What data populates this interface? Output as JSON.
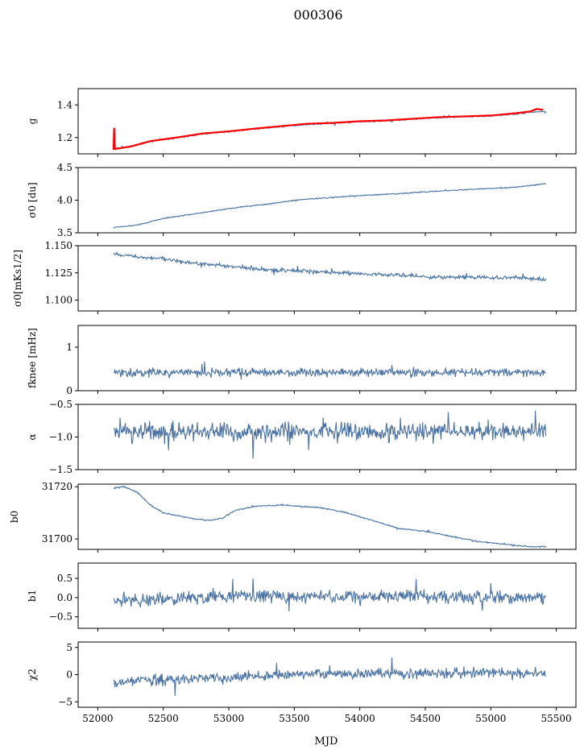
{
  "title": "000306",
  "xlabel": "MJD",
  "x_range": [
    51850,
    55650
  ],
  "x_ticks": [
    52000,
    52500,
    53000,
    53500,
    54000,
    54500,
    55000,
    55500
  ],
  "colors": {
    "series": "#4a72a4",
    "overlay": "#ff0000",
    "axis": "#000000"
  },
  "chart_data": [
    {
      "type": "line",
      "name": "g",
      "ylabel": "g",
      "ylim": [
        1.1,
        1.5
      ],
      "yticks": [
        1.2,
        1.4
      ],
      "ytick_labels": [
        "1.2",
        "1.4"
      ],
      "x_start": 52120,
      "x_end": 55420,
      "overlay": {
        "color": "#ff0000",
        "points": [
          [
            52120,
            1.125
          ],
          [
            52125,
            1.26
          ],
          [
            52130,
            1.13
          ],
          [
            52250,
            1.145
          ],
          [
            52400,
            1.178
          ],
          [
            52600,
            1.2
          ],
          [
            52800,
            1.225
          ],
          [
            53000,
            1.238
          ],
          [
            53200,
            1.255
          ],
          [
            53400,
            1.27
          ],
          [
            53600,
            1.285
          ],
          [
            53800,
            1.29
          ],
          [
            54000,
            1.3
          ],
          [
            54200,
            1.305
          ],
          [
            54400,
            1.315
          ],
          [
            54600,
            1.325
          ],
          [
            54800,
            1.33
          ],
          [
            55000,
            1.335
          ],
          [
            55200,
            1.35
          ],
          [
            55300,
            1.36
          ],
          [
            55350,
            1.375
          ],
          [
            55400,
            1.37
          ]
        ]
      },
      "series": [
        {
          "points": [
            [
              52120,
              1.13
            ],
            [
              52250,
              1.145
            ],
            [
              52400,
              1.175
            ],
            [
              52600,
              1.198
            ],
            [
              52800,
              1.222
            ],
            [
              53000,
              1.235
            ],
            [
              53200,
              1.252
            ],
            [
              53400,
              1.267
            ],
            [
              53600,
              1.28
            ],
            [
              53800,
              1.288
            ],
            [
              54000,
              1.297
            ],
            [
              54200,
              1.302
            ],
            [
              54400,
              1.312
            ],
            [
              54600,
              1.322
            ],
            [
              54800,
              1.327
            ],
            [
              55000,
              1.332
            ],
            [
              55200,
              1.345
            ],
            [
              55300,
              1.355
            ],
            [
              55400,
              1.36
            ]
          ],
          "noise": 0.003,
          "seed": 1
        }
      ]
    },
    {
      "type": "line",
      "name": "sigma0_du",
      "ylabel": "σ0 [du]",
      "ylim": [
        3.5,
        4.5
      ],
      "yticks": [
        3.5,
        4.0,
        4.5
      ],
      "ytick_labels": [
        "3.5",
        "4.0",
        "4.5"
      ],
      "x_start": 52120,
      "x_end": 55420,
      "series": [
        {
          "points": [
            [
              52120,
              3.58
            ],
            [
              52300,
              3.62
            ],
            [
              52500,
              3.72
            ],
            [
              52700,
              3.78
            ],
            [
              52900,
              3.84
            ],
            [
              53100,
              3.9
            ],
            [
              53300,
              3.94
            ],
            [
              53500,
              4.0
            ],
            [
              53700,
              4.03
            ],
            [
              54000,
              4.07
            ],
            [
              54300,
              4.1
            ],
            [
              54600,
              4.14
            ],
            [
              54900,
              4.17
            ],
            [
              55200,
              4.2
            ],
            [
              55400,
              4.25
            ]
          ],
          "noise": 0.006,
          "seed": 2
        }
      ]
    },
    {
      "type": "line",
      "name": "sigma0_mks",
      "ylabel": "σ0[mKs1/2]",
      "ylim": [
        1.09,
        1.15
      ],
      "yticks": [
        1.1,
        1.125,
        1.15
      ],
      "ytick_labels": [
        "1.100",
        "1.125",
        "1.150"
      ],
      "x_start": 52120,
      "x_end": 55420,
      "series": [
        {
          "points": [
            [
              52120,
              1.142
            ],
            [
              52300,
              1.14
            ],
            [
              52500,
              1.138
            ],
            [
              52700,
              1.134
            ],
            [
              52900,
              1.132
            ],
            [
              53100,
              1.13
            ],
            [
              53300,
              1.128
            ],
            [
              53500,
              1.127
            ],
            [
              53700,
              1.126
            ],
            [
              54000,
              1.124
            ],
            [
              54300,
              1.123
            ],
            [
              54600,
              1.121
            ],
            [
              54900,
              1.121
            ],
            [
              55100,
              1.12
            ],
            [
              55200,
              1.121
            ],
            [
              55420,
              1.119
            ]
          ],
          "noise": 0.0012,
          "seed": 3
        }
      ]
    },
    {
      "type": "line",
      "name": "fknee",
      "ylabel": "fknee [mHz]",
      "ylim": [
        0,
        1.5
      ],
      "yticks": [
        0,
        1
      ],
      "ytick_labels": [
        "0",
        "1"
      ],
      "x_start": 52120,
      "x_end": 55420,
      "series": [
        {
          "points": [
            [
              52120,
              0.42
            ],
            [
              55420,
              0.42
            ]
          ],
          "noise": 0.07,
          "seed": 4
        }
      ]
    },
    {
      "type": "line",
      "name": "alpha",
      "ylabel": "α",
      "ylim": [
        -1.5,
        -0.5
      ],
      "yticks": [
        -1.5,
        -1.0,
        -0.5
      ],
      "ytick_labels": [
        "−1.5",
        "−1.0",
        "−0.5"
      ],
      "x_start": 52120,
      "x_end": 55420,
      "series": [
        {
          "points": [
            [
              52120,
              -0.92
            ],
            [
              55420,
              -0.92
            ]
          ],
          "noise": 0.1,
          "seed": 5
        }
      ]
    },
    {
      "type": "line",
      "name": "b0",
      "ylabel": "b0",
      "ylim": [
        31696,
        31721
      ],
      "yticks": [
        31700,
        31720
      ],
      "ytick_labels": [
        "31700",
        "31720"
      ],
      "x_start": 52120,
      "x_end": 55420,
      "series": [
        {
          "points": [
            [
              52120,
              31719.5
            ],
            [
              52200,
              31720
            ],
            [
              52300,
              31718
            ],
            [
              52400,
              31713
            ],
            [
              52500,
              31710
            ],
            [
              52700,
              31708
            ],
            [
              52850,
              31707
            ],
            [
              52950,
              31708
            ],
            [
              53050,
              31711
            ],
            [
              53200,
              31712.5
            ],
            [
              53400,
              31713
            ],
            [
              53700,
              31712
            ],
            [
              53900,
              31710
            ],
            [
              54100,
              31707
            ],
            [
              54300,
              31704
            ],
            [
              54500,
              31703
            ],
            [
              54700,
              31701
            ],
            [
              54900,
              31699
            ],
            [
              55100,
              31698
            ],
            [
              55300,
              31697
            ],
            [
              55420,
              31697
            ]
          ],
          "noise": 0.18,
          "seed": 6
        }
      ]
    },
    {
      "type": "line",
      "name": "b1",
      "ylabel": "b1",
      "ylim": [
        -0.8,
        0.9
      ],
      "yticks": [
        -0.5,
        0.0,
        0.5
      ],
      "ytick_labels": [
        "−0.5",
        "0.0",
        "0.5"
      ],
      "x_start": 52120,
      "x_end": 55420,
      "series": [
        {
          "points": [
            [
              52120,
              -0.05
            ],
            [
              52500,
              -0.05
            ],
            [
              53000,
              0.05
            ],
            [
              53500,
              0.05
            ],
            [
              54000,
              0.02
            ],
            [
              54500,
              0.02
            ],
            [
              55000,
              0.0
            ],
            [
              55420,
              0.0
            ]
          ],
          "noise": 0.12,
          "seed": 7
        }
      ]
    },
    {
      "type": "line",
      "name": "chi2",
      "ylabel": "χ2",
      "ylim": [
        -6,
        6
      ],
      "yticks": [
        -5,
        0,
        5
      ],
      "ytick_labels": [
        "−5",
        "0",
        "5"
      ],
      "x_start": 52120,
      "x_end": 55420,
      "series": [
        {
          "points": [
            [
              52120,
              -1.5
            ],
            [
              52500,
              -1.0
            ],
            [
              53000,
              -0.5
            ],
            [
              53500,
              0.0
            ],
            [
              54000,
              0.2
            ],
            [
              54500,
              0.3
            ],
            [
              55000,
              0.3
            ],
            [
              55420,
              0.2
            ]
          ],
          "noise": 0.7,
          "seed": 8
        }
      ]
    }
  ]
}
